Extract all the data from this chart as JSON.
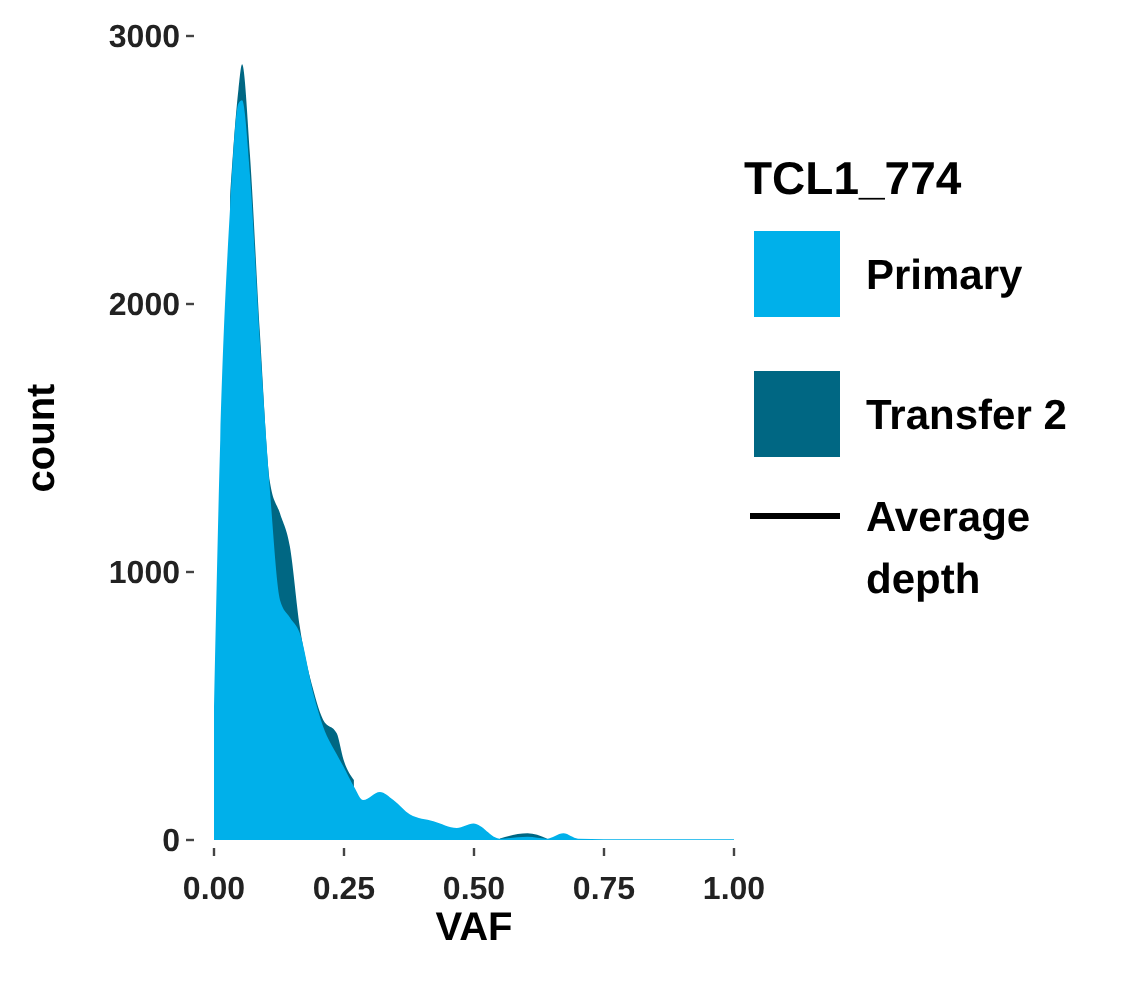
{
  "chart_data": {
    "type": "area",
    "xlabel": "VAF",
    "ylabel": "count",
    "legend_title": "TCL1_774",
    "legend": "right",
    "grid": false,
    "x": [
      0,
      0.012,
      0.031,
      0.047,
      0.054,
      0.069,
      0.088,
      0.108,
      0.127,
      0.146,
      0.165,
      0.191,
      0.21,
      0.236,
      0.249,
      0.269,
      0.287,
      0.319,
      0.345,
      0.377,
      0.422,
      0.467,
      0.499,
      0.55,
      0.603,
      0.64,
      0.672,
      0.7,
      0.8,
      1.0
    ],
    "xlim": [
      0,
      1
    ],
    "xticks": [
      {
        "value": 0,
        "label": "0.00"
      },
      {
        "value": 0.25,
        "label": "0.25"
      },
      {
        "value": 0.5,
        "label": "0.50"
      },
      {
        "value": 0.75,
        "label": "0.75"
      },
      {
        "value": 1,
        "label": "1.00"
      }
    ],
    "ylim": [
      0,
      3000
    ],
    "yticks": [
      0,
      1000,
      2000,
      3000
    ],
    "series": [
      {
        "name": "Primary",
        "color": "#00b0ea",
        "values": [
          497,
          1492,
          2362,
          2748,
          2760,
          2486,
          1865,
          1293,
          895,
          830,
          771,
          547,
          423,
          320,
          274,
          200,
          149,
          179,
          149,
          95,
          70,
          45,
          62,
          5,
          12,
          5,
          25,
          5,
          3,
          3
        ]
      },
      {
        "name": "Transfer 2",
        "color": "#006783",
        "values": [
          null,
          null,
          2400,
          2800,
          2895,
          2560,
          1900,
          1330,
          1218,
          1094,
          796,
          560,
          448,
          398,
          300,
          224,
          null,
          null,
          null,
          null,
          null,
          null,
          null,
          6,
          25,
          6,
          null,
          null,
          null,
          null
        ]
      },
      {
        "name": "Average depth",
        "type": "line",
        "color": "#000000",
        "values": [
          null,
          null,
          null,
          null,
          null,
          null,
          null,
          null,
          null,
          null,
          null,
          null,
          null,
          null,
          null,
          null,
          null,
          null,
          null,
          null,
          null,
          null,
          null,
          null,
          null,
          null,
          null,
          null,
          null,
          null
        ]
      }
    ]
  }
}
